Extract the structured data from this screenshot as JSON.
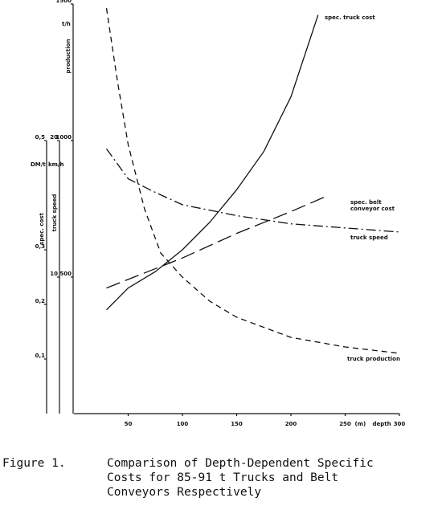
{
  "chart_data": {
    "type": "line",
    "xlim": [
      0,
      300
    ],
    "xticks": [
      50,
      100,
      150,
      200,
      250,
      300
    ],
    "x_unit": "(m)",
    "x_label": "depth",
    "axes": [
      {
        "label": "spec. cost",
        "unit": "DM/t",
        "ylim": [
          0,
          0.5
        ],
        "yticks": [
          {
            "value": 0.1,
            "label": "0,1"
          },
          {
            "value": 0.2,
            "label": "0,2"
          },
          {
            "value": 0.3,
            "label": "0,3"
          },
          {
            "value": 0.5,
            "label": "0,5"
          }
        ]
      },
      {
        "label": "truck speed",
        "unit": "km/h",
        "ylim": [
          0,
          20
        ],
        "yticks": [
          10,
          20
        ]
      },
      {
        "label": "production",
        "unit": "t/h",
        "ylim": [
          0,
          1500
        ],
        "yticks": [
          500,
          1000,
          1500
        ]
      }
    ],
    "series": [
      {
        "name": "spec. truck cost",
        "axis": 0,
        "style": "solid",
        "color": "#111",
        "x": [
          30,
          50,
          75,
          100,
          125,
          150,
          175,
          200,
          225
        ],
        "values": [
          0.19,
          0.23,
          0.26,
          0.3,
          0.35,
          0.41,
          0.48,
          0.58,
          0.73
        ]
      },
      {
        "name": "spec. belt conveyor cost",
        "axis": 0,
        "style": "longdash",
        "color": "#111",
        "x": [
          30,
          100,
          150,
          200,
          235
        ],
        "values": [
          0.23,
          0.285,
          0.33,
          0.37,
          0.4
        ]
      },
      {
        "name": "truck speed",
        "axis": 1,
        "style": "dashdot",
        "color": "#111",
        "x": [
          30,
          50,
          75,
          100,
          150,
          200,
          250,
          300
        ],
        "values": [
          19.4,
          17.2,
          16.2,
          15.3,
          14.5,
          13.9,
          13.6,
          13.3
        ]
      },
      {
        "name": "truck production",
        "axis": 2,
        "style": "shortdash",
        "color": "#111",
        "x": [
          30,
          40,
          50,
          65,
          80,
          100,
          125,
          150,
          200,
          250,
          300
        ],
        "values": [
          1485,
          1220,
          985,
          750,
          588,
          500,
          412,
          353,
          279,
          244,
          221
        ]
      }
    ]
  },
  "caption": {
    "label": "Figure 1.",
    "text": [
      "Comparison of Depth-Dependent Specific",
      "Costs for 85-91 t Trucks and Belt",
      "Conveyors Respectively"
    ]
  }
}
